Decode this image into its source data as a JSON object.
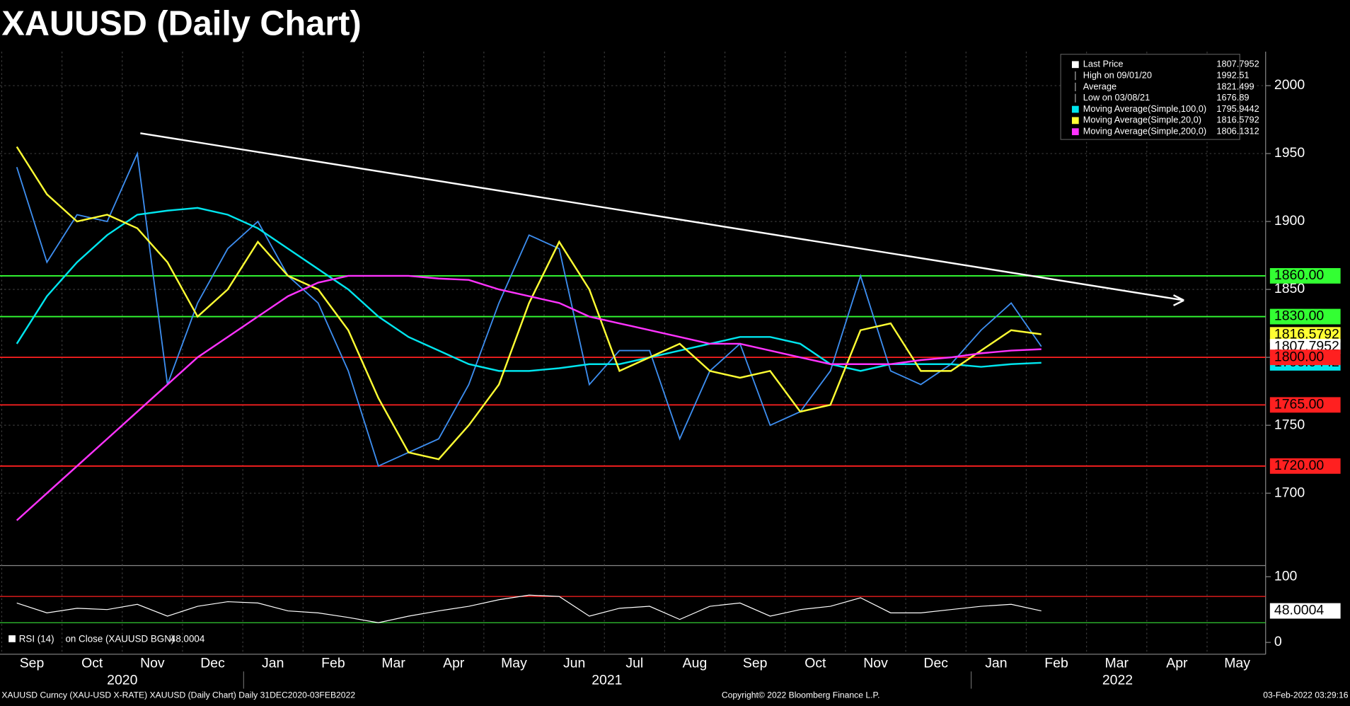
{
  "chart_data": [
    {
      "type": "line",
      "title": "XAUUSD (Daily Chart)",
      "categories": [
        "Sep",
        null,
        "Oct",
        null,
        "Nov",
        null,
        "Dec",
        null,
        "Jan",
        null,
        "Feb",
        null,
        "Mar",
        null,
        "Apr",
        null,
        "May",
        null,
        "Jun",
        null,
        "Jul",
        null,
        "Aug",
        null,
        "Sep",
        null,
        "Oct",
        null,
        "Nov",
        null,
        "Dec",
        null,
        "Jan",
        null,
        "Feb",
        null,
        "Mar",
        null,
        "Apr",
        null,
        "May",
        null
      ],
      "year_labels": [
        "2020",
        "2021",
        "2022"
      ],
      "ylim": [
        1648,
        2025
      ],
      "yticks": [
        1700,
        1750,
        1800,
        1850,
        1900,
        1950,
        2000
      ],
      "grid": true,
      "series": [
        {
          "name": "Last Price",
          "color": "#3d8ef0",
          "last_value": 1807.7952,
          "values": [
            1940,
            1870,
            1905,
            1900,
            1950,
            1780,
            1840,
            1880,
            1900,
            1860,
            1840,
            1790,
            1720,
            1730,
            1740,
            1780,
            1840,
            1890,
            1880,
            1780,
            1805,
            1805,
            1740,
            1790,
            1810,
            1750,
            1760,
            1790,
            1860,
            1790,
            1780,
            1795,
            1820,
            1840,
            1808,
            null,
            null,
            null,
            null,
            null,
            null,
            null
          ]
        },
        {
          "name": "Moving Average(Simple,100,0)",
          "color": "#00e5ee",
          "last_value": 1795.9442,
          "values": [
            1810,
            1845,
            1870,
            1890,
            1905,
            1908,
            1910,
            1905,
            1895,
            1880,
            1865,
            1850,
            1830,
            1815,
            1805,
            1795,
            1790,
            1790,
            1792,
            1795,
            1795,
            1800,
            1805,
            1810,
            1815,
            1815,
            1810,
            1795,
            1790,
            1795,
            1795,
            1795,
            1793,
            1795,
            1796,
            null,
            null,
            null,
            null,
            null,
            null,
            null
          ]
        },
        {
          "name": "Moving Average(Simple,20,0)",
          "color": "#ffff33",
          "last_value": 1816.5792,
          "values": [
            1955,
            1920,
            1900,
            1905,
            1895,
            1870,
            1830,
            1850,
            1885,
            1860,
            1850,
            1820,
            1770,
            1730,
            1725,
            1750,
            1780,
            1840,
            1885,
            1850,
            1790,
            1800,
            1810,
            1790,
            1785,
            1790,
            1760,
            1765,
            1820,
            1825,
            1790,
            1790,
            1805,
            1820,
            1817,
            null,
            null,
            null,
            null,
            null,
            null,
            null
          ]
        },
        {
          "name": "Moving Average(Simple,200,0)",
          "color": "#ff33ff",
          "last_value": 1806.1312,
          "values": [
            1680,
            1700,
            1720,
            1740,
            1760,
            1780,
            1800,
            1815,
            1830,
            1845,
            1855,
            1860,
            1860,
            1860,
            1858,
            1857,
            1850,
            1845,
            1840,
            1830,
            1825,
            1820,
            1815,
            1810,
            1810,
            1805,
            1800,
            1795,
            1795,
            1795,
            1798,
            1800,
            1803,
            1805,
            1806,
            null,
            null,
            null,
            null,
            null,
            null,
            null
          ]
        }
      ],
      "legend_stats": [
        {
          "label": "High on 09/01/20",
          "value": 1992.51
        },
        {
          "label": "Average",
          "value": 1821.499
        },
        {
          "label": "Low on 03/08/21",
          "value": 1676.89
        }
      ],
      "levels": [
        {
          "value": 1860,
          "label": "1860.00",
          "color": "#33ff33"
        },
        {
          "value": 1830,
          "label": "1830.00",
          "color": "#33ff33"
        },
        {
          "value": 1800,
          "label": "1800.00",
          "color": "#ff2020"
        },
        {
          "value": 1765,
          "label": "1765.00",
          "color": "#ff2020"
        },
        {
          "value": 1720,
          "label": "1720.00",
          "color": "#ff2020"
        }
      ],
      "trendline": {
        "values": [
          1965,
          1842
        ],
        "color": "#ffffff"
      }
    },
    {
      "type": "line",
      "name": "RSI (14)",
      "label": "on Close (XAUUSD BGN)",
      "last_value": 48.0004,
      "color": "#ffffff",
      "ylim": [
        -18,
        117
      ],
      "yticks": [
        0,
        100
      ],
      "levels": [
        {
          "value": 70,
          "color": "#ff2020"
        },
        {
          "value": 30,
          "color": "#33cc33"
        }
      ],
      "values": [
        60,
        45,
        52,
        50,
        58,
        40,
        55,
        62,
        60,
        48,
        45,
        38,
        30,
        40,
        48,
        55,
        65,
        72,
        70,
        40,
        52,
        55,
        35,
        55,
        60,
        40,
        50,
        55,
        68,
        45,
        45,
        50,
        55,
        58,
        48,
        null,
        null,
        null,
        null,
        null,
        null,
        null
      ]
    }
  ],
  "footer": {
    "left": "XAUUSD Curncy (XAU-USD X-RATE) XAUUSD (Daily Chart)  Daily 31DEC2020-03FEB2022",
    "center": "Copyright© 2022 Bloomberg Finance L.P.",
    "right": "03-Feb-2022 03:29:16"
  }
}
